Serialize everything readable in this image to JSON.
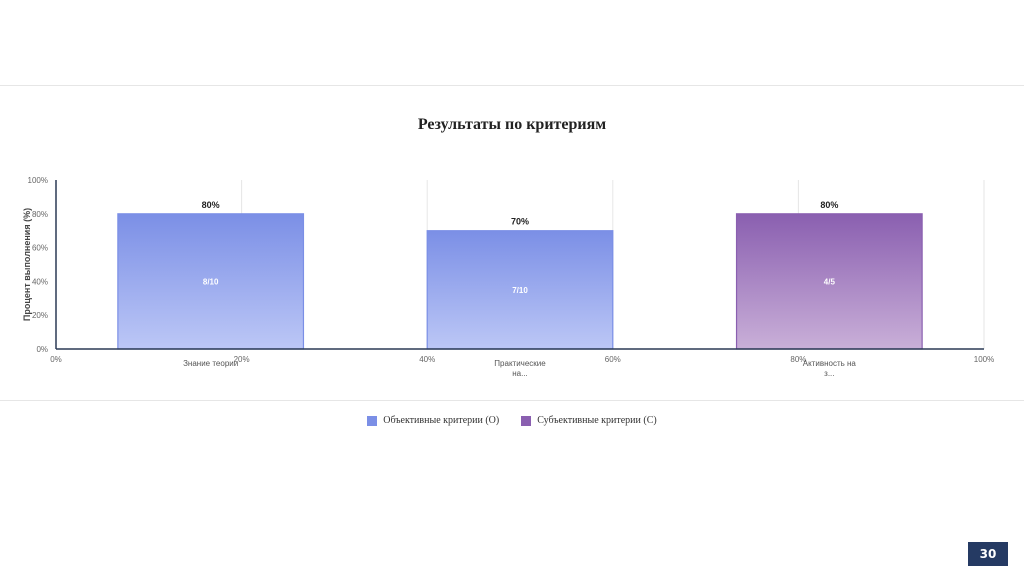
{
  "chart_data": {
    "type": "bar",
    "title": "Результаты по критериям",
    "ylabel": "Процент выполнения (%)",
    "ylim": [
      0,
      100
    ],
    "y_ticks": [
      "0%",
      "20%",
      "40%",
      "60%",
      "80%",
      "100%"
    ],
    "x_ticks": [
      "0%",
      "20%",
      "40%",
      "60%",
      "80%",
      "100%"
    ],
    "categories": [
      [
        "Знание теории"
      ],
      [
        "Практические",
        "на..."
      ],
      [
        "Активность на",
        "з..."
      ]
    ],
    "values": [
      80,
      70,
      80
    ],
    "value_labels": [
      "80%",
      "70%",
      "80%"
    ],
    "inner_labels": [
      "8/10",
      "7/10",
      "4/5"
    ],
    "bar_series": [
      0,
      0,
      1
    ],
    "series": [
      {
        "name": "Объективные критерии (О)",
        "color": "#7b8fe6",
        "color_light": "#bcc7f6"
      },
      {
        "name": "Субъективные критерии (С)",
        "color": "#8a5fb0",
        "color_light": "#c9afd8"
      }
    ],
    "grid": true,
    "legend_position": "bottom"
  },
  "page_number": "30"
}
